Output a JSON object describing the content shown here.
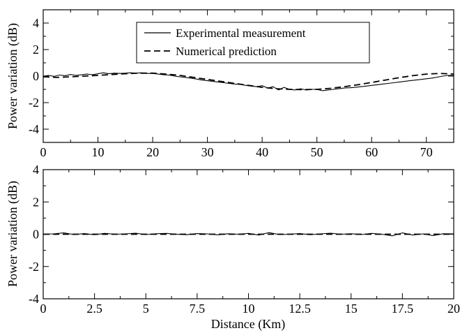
{
  "chart_data": [
    {
      "type": "line",
      "xlim": [
        0,
        75
      ],
      "ylim": [
        -5,
        5
      ],
      "xticks": [
        0,
        10,
        20,
        30,
        40,
        50,
        60,
        70
      ],
      "yticks": [
        -4,
        -2,
        0,
        2,
        4
      ],
      "xtick_labels": [
        "0",
        "10",
        "20",
        "30",
        "40",
        "50",
        "60",
        "70"
      ],
      "ytick_labels": [
        "-4",
        "-2",
        "0",
        "2",
        "4"
      ],
      "xlabel": "",
      "ylabel": "Power variation (dB)",
      "legend": {
        "placement": "top-center",
        "entries": [
          "Experimental measurement",
          "Numerical prediction"
        ]
      },
      "grid": false,
      "series": [
        {
          "name": "Experimental measurement",
          "style": "solid",
          "x": [
            0,
            1,
            2,
            3,
            4,
            5,
            6,
            7,
            8,
            9,
            10,
            11,
            12,
            13,
            14,
            15,
            16,
            17,
            18,
            19,
            20,
            21,
            22,
            23,
            24,
            25,
            26,
            27,
            28,
            29,
            30,
            31,
            32,
            33,
            34,
            35,
            36,
            37,
            38,
            39,
            40,
            41,
            42,
            43,
            44,
            45,
            46,
            47,
            48,
            49,
            50,
            51,
            52,
            53,
            54,
            55,
            56,
            57,
            58,
            59,
            60,
            61,
            62,
            63,
            64,
            65,
            66,
            67,
            68,
            69,
            70,
            71,
            72,
            73,
            74,
            75
          ],
          "y": [
            0.0,
            0.05,
            -0.02,
            0.08,
            0.03,
            0.12,
            0.05,
            0.1,
            0.15,
            0.1,
            0.18,
            0.25,
            0.18,
            0.22,
            0.2,
            0.22,
            0.25,
            0.22,
            0.25,
            0.2,
            0.2,
            0.15,
            0.1,
            0.08,
            0.0,
            -0.05,
            -0.1,
            -0.15,
            -0.22,
            -0.3,
            -0.35,
            -0.4,
            -0.45,
            -0.5,
            -0.55,
            -0.6,
            -0.62,
            -0.7,
            -0.75,
            -0.8,
            -0.72,
            -0.9,
            -0.8,
            -1.05,
            -0.85,
            -1.0,
            -1.05,
            -0.95,
            -1.05,
            -1.0,
            -1.0,
            -1.1,
            -1.05,
            -1.0,
            -0.95,
            -0.9,
            -0.88,
            -0.85,
            -0.8,
            -0.75,
            -0.7,
            -0.65,
            -0.6,
            -0.55,
            -0.5,
            -0.45,
            -0.4,
            -0.35,
            -0.3,
            -0.25,
            -0.2,
            -0.15,
            -0.08,
            0.0,
            0.05,
            0.05
          ]
        },
        {
          "name": "Numerical prediction",
          "style": "dashed",
          "x": [
            0,
            2.5,
            5,
            7.5,
            10,
            12.5,
            15,
            17.5,
            20,
            22.5,
            25,
            27.5,
            30,
            32.5,
            35,
            37.5,
            40,
            42.5,
            45,
            47.5,
            50,
            52.5,
            55,
            57.5,
            60,
            62.5,
            65,
            67.5,
            70,
            72.5,
            75
          ],
          "y": [
            -0.05,
            -0.1,
            -0.05,
            0.0,
            0.05,
            0.12,
            0.18,
            0.22,
            0.22,
            0.15,
            0.05,
            -0.1,
            -0.25,
            -0.4,
            -0.55,
            -0.7,
            -0.85,
            -0.95,
            -1.0,
            -1.02,
            -1.0,
            -0.92,
            -0.8,
            -0.65,
            -0.48,
            -0.3,
            -0.12,
            0.03,
            0.15,
            0.2,
            0.15
          ]
        }
      ]
    },
    {
      "type": "line",
      "xlim": [
        0,
        20
      ],
      "ylim": [
        -4,
        4
      ],
      "xticks": [
        0,
        2.5,
        5,
        7.5,
        10,
        12.5,
        15,
        17.5,
        20
      ],
      "yticks": [
        -4,
        -2,
        0,
        2,
        4
      ],
      "xtick_labels": [
        "0",
        "2.5",
        "5",
        "7.5",
        "10",
        "12.5",
        "15",
        "17.5",
        "20"
      ],
      "ytick_labels": [
        "-4",
        "-2",
        "0",
        "2",
        "4"
      ],
      "xlabel": "Distance (Km)",
      "ylabel": "Power variation (dB)",
      "grid": false,
      "series": [
        {
          "name": "Experimental measurement",
          "style": "solid",
          "x": [
            0,
            0.5,
            1,
            1.5,
            2,
            2.5,
            3,
            3.5,
            4,
            4.5,
            5,
            5.5,
            6,
            6.5,
            7,
            7.5,
            8,
            8.5,
            9,
            9.5,
            10,
            10.5,
            11,
            11.5,
            12,
            12.5,
            13,
            13.5,
            14,
            14.5,
            15,
            15.5,
            16,
            16.5,
            17,
            17.5,
            18,
            18.5,
            19,
            19.5,
            20
          ],
          "y": [
            0.0,
            0.02,
            0.08,
            -0.02,
            0.04,
            -0.03,
            0.05,
            0.0,
            0.02,
            0.06,
            -0.02,
            0.03,
            0.05,
            0.0,
            -0.03,
            0.04,
            0.02,
            -0.04,
            0.03,
            0.0,
            0.05,
            -0.05,
            0.1,
            -0.02,
            0.0,
            0.04,
            -0.03,
            0.02,
            0.06,
            0.0,
            0.03,
            -0.02,
            0.05,
            0.0,
            -0.1,
            0.08,
            -0.05,
            0.02,
            -0.08,
            0.03,
            0.02
          ]
        },
        {
          "name": "Numerical prediction",
          "style": "dashed",
          "x": [
            0,
            2.5,
            5,
            7.5,
            10,
            12.5,
            15,
            17.5,
            20
          ],
          "y": [
            0.0,
            0.0,
            0.0,
            0.0,
            0.0,
            0.0,
            0.0,
            0.0,
            0.0
          ]
        }
      ]
    }
  ]
}
